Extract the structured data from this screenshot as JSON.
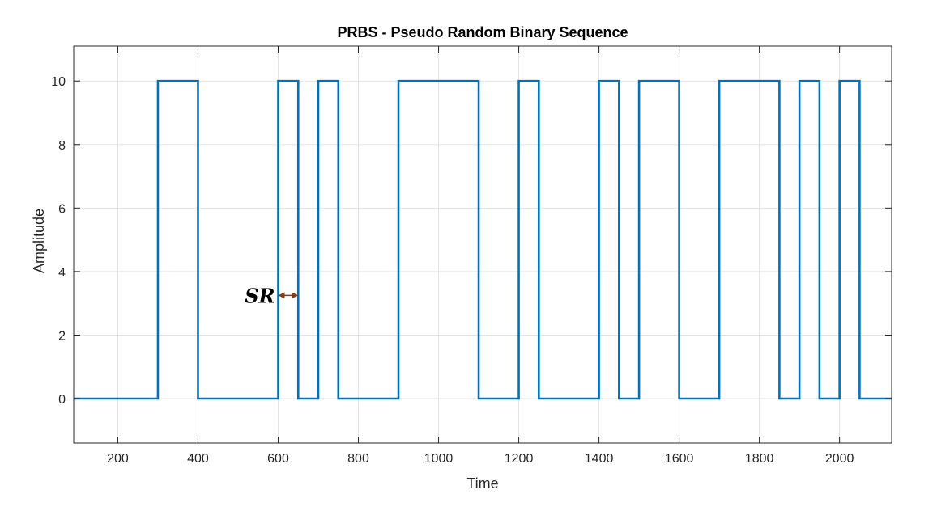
{
  "chart_data": {
    "type": "line",
    "title": "PRBS - Pseudo Random Binary Sequence",
    "xlabel": "Time",
    "ylabel": "Amplitude",
    "xlim": [
      90,
      2130
    ],
    "ylim": [
      -1.4,
      11.1
    ],
    "xticks": [
      200,
      400,
      600,
      800,
      1000,
      1200,
      1400,
      1600,
      1800,
      2000
    ],
    "yticks": [
      0,
      2,
      4,
      6,
      8,
      10
    ],
    "grid": true,
    "legend": "none",
    "series": [
      {
        "step": "post",
        "color": "#0072BD",
        "x": [
          90,
          300,
          400,
          600,
          650,
          700,
          750,
          900,
          1100,
          1200,
          1250,
          1400,
          1450,
          1500,
          1600,
          1700,
          1850,
          1900,
          1950,
          2000,
          2050,
          2130
        ],
        "y": [
          0,
          10,
          0,
          10,
          0,
          10,
          0,
          10,
          0,
          10,
          0,
          10,
          0,
          10,
          0,
          10,
          0,
          10,
          0,
          10,
          0,
          0
        ]
      }
    ],
    "annotations": [
      {
        "text": "SR",
        "arrow_x": [
          600,
          650
        ],
        "y": 3.25,
        "color": "#8B3A0E"
      }
    ]
  }
}
